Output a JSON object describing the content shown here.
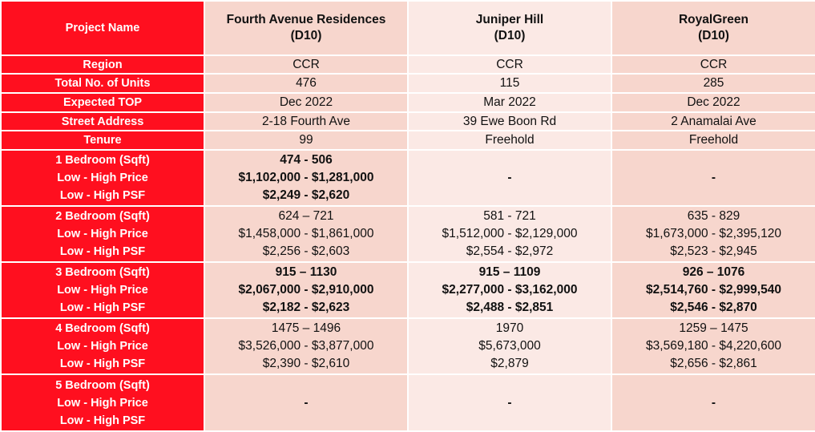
{
  "header": {
    "label": "Project Name",
    "projects": [
      {
        "name": "Fourth Avenue Residences",
        "district": "(D10)"
      },
      {
        "name": "Juniper Hill",
        "district": "(D10)"
      },
      {
        "name": "RoyalGreen",
        "district": "(D10)"
      }
    ]
  },
  "simple_rows": [
    {
      "label": "Region",
      "values": [
        "CCR",
        "CCR",
        "CCR"
      ]
    },
    {
      "label": "Total No. of Units",
      "values": [
        "476",
        "115",
        "285"
      ]
    },
    {
      "label": "Expected TOP",
      "values": [
        "Dec 2022",
        "Mar 2022",
        "Dec 2022"
      ]
    },
    {
      "label": "Street Address",
      "values": [
        "2-18 Fourth Ave",
        "39 Ewe Boon Rd",
        "2 Anamalai Ave"
      ]
    },
    {
      "label": "Tenure",
      "values": [
        "99",
        "Freehold",
        "Freehold"
      ]
    }
  ],
  "bedroom_groups": [
    {
      "labels": [
        "1 Bedroom (Sqft)",
        "Low - High Price",
        "Low - High PSF"
      ],
      "projects": [
        [
          "474 - 506",
          "$1,102,000 - $1,281,000",
          "$2,249 - $2,620"
        ],
        "-",
        "-"
      ]
    },
    {
      "labels": [
        "2 Bedroom (Sqft)",
        "Low - High Price",
        "Low - High PSF"
      ],
      "projects": [
        [
          "624 – 721",
          "$1,458,000 - $1,861,000",
          "$2,256 - $2,603"
        ],
        [
          "581 - 721",
          "$1,512,000 - $2,129,000",
          "$2,554 - $2,972"
        ],
        [
          "635 - 829",
          "$1,673,000 - $2,395,120",
          "$2,523 - $2,945"
        ]
      ]
    },
    {
      "labels": [
        "3 Bedroom (Sqft)",
        "Low - High Price",
        "Low - High PSF"
      ],
      "projects": [
        [
          "915 – 1130",
          "$2,067,000 - $2,910,000",
          "$2,182 - $2,623"
        ],
        [
          "915 – 1109",
          "$2,277,000 - $3,162,000",
          "$2,488 - $2,851"
        ],
        [
          "926 – 1076",
          "$2,514,760 - $2,999,540",
          "$2,546 - $2,870"
        ]
      ]
    },
    {
      "labels": [
        "4 Bedroom (Sqft)",
        "Low - High Price",
        "Low - High PSF"
      ],
      "projects": [
        [
          "1475 – 1496",
          "$3,526,000 - $3,877,000",
          "$2,390 - $2,610"
        ],
        [
          "1970",
          "$5,673,000",
          "$2,879"
        ],
        [
          "1259 – 1475",
          "$3,569,180 - $4,220,600",
          "$2,656 - $2,861"
        ]
      ]
    },
    {
      "labels": [
        "5 Bedroom (Sqft)",
        "Low - High Price",
        "Low - High PSF"
      ],
      "projects": [
        "-",
        "-",
        "-"
      ]
    }
  ],
  "colors": {
    "label_bg": "#ff0f1f",
    "project_col_a": "#f7d6cd",
    "project_col_b": "#fbe9e5"
  }
}
